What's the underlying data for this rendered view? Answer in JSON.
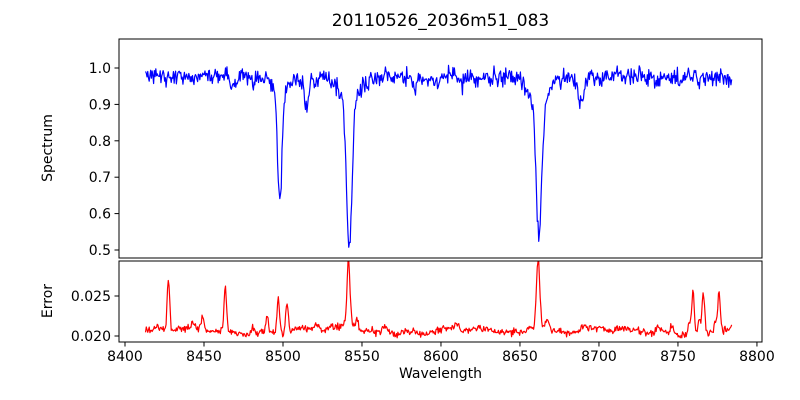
{
  "figure": {
    "background": "#ffffff",
    "text_color": "#000000"
  },
  "chart_data": [
    {
      "type": "line",
      "title": "20110526_2036m51_083",
      "ylabel": "Spectrum",
      "line_color": "#0000ff",
      "grid": false,
      "legend": null,
      "xlim": [
        8396.2,
        8803.2
      ],
      "ylim": [
        0.478,
        1.0797
      ],
      "yticks": [
        1.0,
        0.9,
        0.8,
        0.7,
        0.6,
        0.5
      ],
      "ytick_labels": [
        "1.0",
        "0.9",
        "0.8",
        "0.7",
        "0.6",
        "0.5"
      ],
      "x_start": 8413,
      "x_end": 8784,
      "n_points": 800,
      "seed": 20110526,
      "continuum": 0.975,
      "noise_sigma": 0.011,
      "noise_ramp": 0.25,
      "wiggles": [
        {
          "amp": 0.003,
          "period": 130
        },
        {
          "amp": 0.002,
          "period": 37
        }
      ],
      "absorption_lines": [
        {
          "center": 8467.5,
          "depth": 0.038,
          "width": 1.3
        },
        {
          "center": 8481.0,
          "depth": 0.022,
          "width": 1.0
        },
        {
          "center": 8498.0,
          "depth": 0.3,
          "width": 1.3
        },
        {
          "center": 8498.0,
          "depth": 0.045,
          "width": 4.0
        },
        {
          "center": 8515.0,
          "depth": 0.075,
          "width": 1.3
        },
        {
          "center": 8542.0,
          "depth": 0.4,
          "width": 1.7
        },
        {
          "center": 8542.0,
          "depth": 0.07,
          "width": 6.0
        },
        {
          "center": 8583.0,
          "depth": 0.035,
          "width": 1.2
        },
        {
          "center": 8598.0,
          "depth": 0.02,
          "width": 1.0
        },
        {
          "center": 8613.0,
          "depth": 0.03,
          "width": 1.0
        },
        {
          "center": 8662.0,
          "depth": 0.37,
          "width": 1.7
        },
        {
          "center": 8662.0,
          "depth": 0.07,
          "width": 6.0
        },
        {
          "center": 8688.5,
          "depth": 0.08,
          "width": 1.8
        },
        {
          "center": 8736.0,
          "depth": 0.028,
          "width": 1.2
        },
        {
          "center": 8751.0,
          "depth": 0.02,
          "width": 1.0
        }
      ],
      "key_minima": [
        {
          "wavelength": 8498,
          "value": 0.65
        },
        {
          "wavelength": 8542,
          "value": 0.5
        },
        {
          "wavelength": 8662,
          "value": 0.53
        }
      ]
    },
    {
      "type": "line",
      "ylabel": "Error",
      "xlabel": "Wavelength",
      "line_color": "#ff0000",
      "grid": false,
      "legend": null,
      "xlim": [
        8396.2,
        8803.2
      ],
      "ylim": [
        0.01925,
        0.029375
      ],
      "yticks": [
        0.025,
        0.02
      ],
      "ytick_labels": [
        "0.025",
        "0.020"
      ],
      "xticks": [
        8400,
        8450,
        8500,
        8550,
        8600,
        8650,
        8700,
        8750,
        8800
      ],
      "xtick_labels": [
        "8400",
        "8450",
        "8500",
        "8550",
        "8600",
        "8650",
        "8700",
        "8750",
        "8800"
      ],
      "x_start": 8413,
      "x_end": 8784,
      "n_points": 800,
      "seed": 51083,
      "baseline": 0.0206,
      "noise_sigma": 0.00022,
      "noise_ramp": 0,
      "wiggles": [
        {
          "amp": 0.0003,
          "period": 90
        },
        {
          "amp": 0.00018,
          "period": 23
        }
      ],
      "peaks": [
        {
          "center": 8427.5,
          "amp": 0.0064,
          "width": 0.8
        },
        {
          "center": 8443.0,
          "amp": 0.0008,
          "width": 1.0
        },
        {
          "center": 8449.0,
          "amp": 0.0018,
          "width": 0.9
        },
        {
          "center": 8463.5,
          "amp": 0.0056,
          "width": 0.8
        },
        {
          "center": 8481.0,
          "amp": 0.0008,
          "width": 1.0
        },
        {
          "center": 8490.0,
          "amp": 0.0018,
          "width": 0.9
        },
        {
          "center": 8497.0,
          "amp": 0.0046,
          "width": 0.8
        },
        {
          "center": 8502.5,
          "amp": 0.0037,
          "width": 0.8
        },
        {
          "center": 8521.0,
          "amp": 0.0007,
          "width": 1.5
        },
        {
          "center": 8541.5,
          "amp": 0.0078,
          "width": 0.9
        },
        {
          "center": 8541.5,
          "amp": 0.0012,
          "width": 3.5
        },
        {
          "center": 8547.0,
          "amp": 0.0012,
          "width": 1.0
        },
        {
          "center": 8565.0,
          "amp": 0.0009,
          "width": 2.0
        },
        {
          "center": 8610.0,
          "amp": 0.0007,
          "width": 1.5
        },
        {
          "center": 8661.5,
          "amp": 0.0082,
          "width": 1.0
        },
        {
          "center": 8661.5,
          "amp": 0.0014,
          "width": 4.0
        },
        {
          "center": 8667.5,
          "amp": 0.0012,
          "width": 1.2
        },
        {
          "center": 8690.0,
          "amp": 0.0005,
          "width": 1.5
        },
        {
          "center": 8737.0,
          "amp": 0.0006,
          "width": 1.2
        },
        {
          "center": 8746.0,
          "amp": 0.0008,
          "width": 1.0
        },
        {
          "center": 8757.0,
          "amp": 0.0014,
          "width": 0.6
        },
        {
          "center": 8759.5,
          "amp": 0.0051,
          "width": 0.8
        },
        {
          "center": 8763.5,
          "amp": 0.0016,
          "width": 0.6
        },
        {
          "center": 8766.0,
          "amp": 0.0047,
          "width": 0.8
        },
        {
          "center": 8773.5,
          "amp": 0.0016,
          "width": 0.7
        },
        {
          "center": 8776.0,
          "amp": 0.0053,
          "width": 0.8
        }
      ],
      "key_maxima": [
        {
          "wavelength": 8427,
          "value": 0.027
        },
        {
          "wavelength": 8463,
          "value": 0.026
        },
        {
          "wavelength": 8542,
          "value": 0.0288
        },
        {
          "wavelength": 8662,
          "value": 0.0291
        },
        {
          "wavelength": 8776,
          "value": 0.026
        }
      ]
    }
  ]
}
